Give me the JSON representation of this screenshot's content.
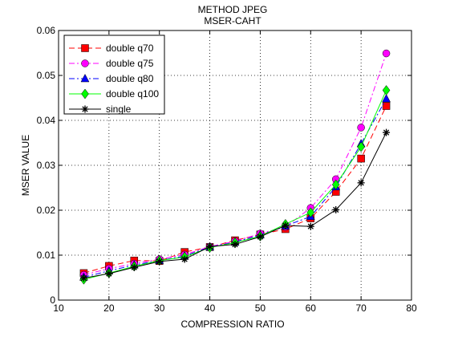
{
  "chart_data": {
    "type": "line",
    "title": "METHOD JPEG",
    "subtitle": "MSER-CAHT",
    "xlabel": "COMPRESSION RATIO",
    "ylabel": "MSER VALUE",
    "xlim": [
      10,
      80
    ],
    "ylim": [
      0,
      0.06
    ],
    "xticks": [
      10,
      20,
      30,
      40,
      50,
      60,
      70,
      80
    ],
    "xtick_labels": [
      "10",
      "20",
      "30",
      "40",
      "50",
      "60",
      "70",
      "80"
    ],
    "yticks": [
      0,
      0.01,
      0.02,
      0.03,
      0.04,
      0.05,
      0.06
    ],
    "ytick_labels": [
      "0",
      "0.01",
      "0.02",
      "0.03",
      "0.04",
      "0.05",
      "0.06"
    ],
    "grid": true,
    "legend_position": "top-left",
    "x": [
      15,
      20,
      25,
      30,
      35,
      40,
      45,
      50,
      55,
      60,
      65,
      70,
      75
    ],
    "series": [
      {
        "name": "double q70",
        "color": "#ff0000",
        "marker": "square",
        "dash": "dash",
        "values": [
          0.006,
          0.0076,
          0.0088,
          0.0087,
          0.0107,
          0.0118,
          0.0133,
          0.0146,
          0.0158,
          0.0182,
          0.0241,
          0.0315,
          0.0432
        ]
      },
      {
        "name": "double q75",
        "color": "#ff00ff",
        "marker": "circle",
        "dash": "dashdot",
        "values": [
          0.0056,
          0.007,
          0.0081,
          0.0091,
          0.0101,
          0.0119,
          0.0131,
          0.0148,
          0.0163,
          0.0205,
          0.0269,
          0.0384,
          0.0549
        ]
      },
      {
        "name": "double q80",
        "color": "#0000ff",
        "marker": "triangle",
        "dash": "dashdot",
        "values": [
          0.0051,
          0.0065,
          0.0078,
          0.0088,
          0.0098,
          0.0118,
          0.0129,
          0.0145,
          0.0165,
          0.0186,
          0.0252,
          0.0348,
          0.0448
        ]
      },
      {
        "name": "double q100",
        "color": "#00ff00",
        "marker": "diamond",
        "dash": "solid",
        "values": [
          0.0046,
          0.006,
          0.0075,
          0.0088,
          0.0096,
          0.0117,
          0.0128,
          0.0142,
          0.0169,
          0.0195,
          0.0257,
          0.0341,
          0.0467
        ]
      },
      {
        "name": "single",
        "color": "#000000",
        "marker": "star",
        "dash": "solid",
        "values": [
          0.0049,
          0.0059,
          0.0073,
          0.0086,
          0.0091,
          0.0119,
          0.0124,
          0.0141,
          0.0166,
          0.0164,
          0.0201,
          0.0261,
          0.0373
        ]
      }
    ]
  }
}
